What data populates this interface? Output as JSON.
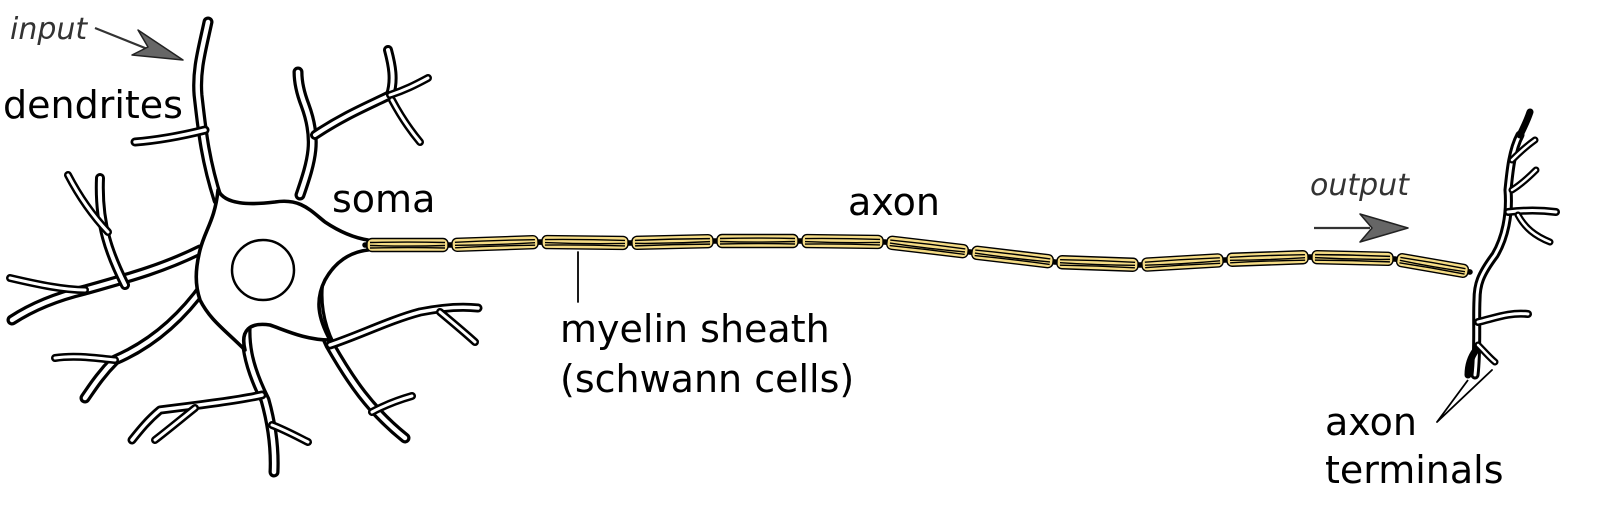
{
  "labels": {
    "input": "input",
    "dendrites": "dendrites",
    "soma": "soma",
    "axon": "axon",
    "myelin_line1": "myelin sheath",
    "myelin_line2": "(schwann cells)",
    "output": "output",
    "terminals_line1": "axon",
    "terminals_line2": "terminals"
  },
  "colors": {
    "myelin_fill": "#f5dc85",
    "arrow_fill": "#666666",
    "outline": "#000000",
    "background": "#ffffff"
  },
  "myelin_segment_count": 13
}
